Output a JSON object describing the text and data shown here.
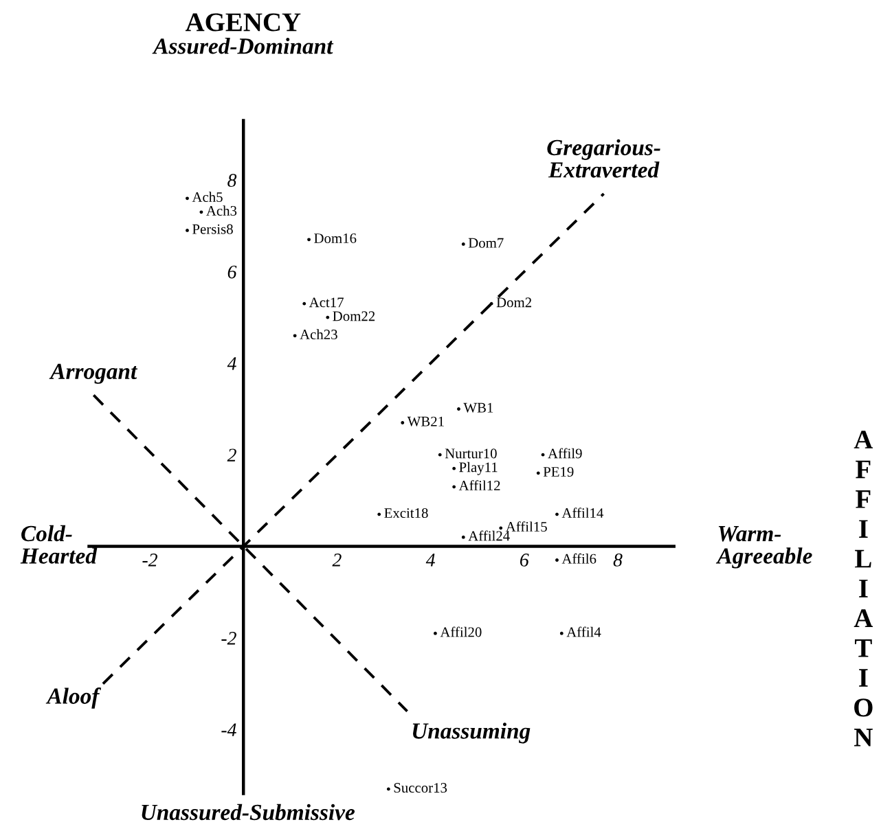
{
  "chart_data": {
    "type": "scatter",
    "ylabel": "AGENCY",
    "xlabel": "AFFILIATION",
    "xlim": [
      -3.3,
      9.2
    ],
    "ylim": [
      -5.4,
      9.3
    ],
    "xticks": [
      -2,
      2,
      4,
      6,
      8
    ],
    "yticks": [
      -4,
      -2,
      2,
      4,
      6,
      8
    ],
    "grid": false,
    "legend": false,
    "marker": "circle",
    "series": [
      {
        "type": "line",
        "line_style": "dashed",
        "marker": "none",
        "color": "#000000",
        "x": [
          -3.0,
          7.7
        ],
        "values": [
          -3.0,
          7.7
        ]
      },
      {
        "type": "line",
        "line_style": "dashed",
        "marker": "none",
        "color": "#000000",
        "x": [
          -3.2,
          3.5
        ],
        "values": [
          3.3,
          -3.6
        ]
      },
      {
        "name": "Ach5",
        "color": "#000000",
        "x": [
          -1.2
        ],
        "values": [
          7.6
        ]
      },
      {
        "name": "Ach3",
        "color": "#000000",
        "x": [
          -0.9
        ],
        "values": [
          7.3
        ]
      },
      {
        "name": "Persis8",
        "color": "#000000",
        "x": [
          -1.2
        ],
        "values": [
          6.9
        ]
      },
      {
        "name": "Dom16",
        "color": "#000000",
        "x": [
          1.4
        ],
        "values": [
          6.7
        ]
      },
      {
        "name": "Act17",
        "color": "#000000",
        "x": [
          1.3
        ],
        "values": [
          5.3
        ]
      },
      {
        "name": "Dom22",
        "color": "#000000",
        "x": [
          1.8
        ],
        "values": [
          5.0
        ]
      },
      {
        "name": "Ach23",
        "color": "#000000",
        "x": [
          1.1
        ],
        "values": [
          4.6
        ]
      },
      {
        "name": "WB21",
        "color": "#000000",
        "x": [
          3.4
        ],
        "values": [
          2.7
        ]
      },
      {
        "name": "Excit18",
        "color": "#000000",
        "x": [
          2.9
        ],
        "values": [
          0.7
        ]
      },
      {
        "name": "Dom7",
        "color": "#000000",
        "x": [
          4.7
        ],
        "values": [
          6.6
        ]
      },
      {
        "name": "Dom2",
        "color": "#000000",
        "x": [
          5.3
        ],
        "values": [
          5.3
        ]
      },
      {
        "name": "WB1",
        "color": "#000000",
        "x": [
          4.6
        ],
        "values": [
          3.0
        ]
      },
      {
        "name": "Nurtur10",
        "color": "#000000",
        "x": [
          4.2
        ],
        "values": [
          2.0
        ]
      },
      {
        "name": "Play11",
        "color": "#000000",
        "x": [
          4.5
        ],
        "values": [
          1.7
        ]
      },
      {
        "name": "Affil12",
        "color": "#000000",
        "x": [
          4.5
        ],
        "values": [
          1.3
        ]
      },
      {
        "name": "Affil9",
        "color": "#000000",
        "x": [
          6.4
        ],
        "values": [
          2.0
        ]
      },
      {
        "name": "PE19",
        "color": "#000000",
        "x": [
          6.3
        ],
        "values": [
          1.6
        ]
      },
      {
        "name": "Affil14",
        "color": "#000000",
        "x": [
          6.7
        ],
        "values": [
          0.7
        ]
      },
      {
        "name": "Affil15",
        "color": "#000000",
        "x": [
          5.5
        ],
        "values": [
          0.4
        ]
      },
      {
        "name": "Affil24",
        "color": "#000000",
        "x": [
          4.7
        ],
        "values": [
          0.2
        ]
      },
      {
        "name": "Affil6",
        "color": "#000000",
        "x": [
          6.7
        ],
        "values": [
          -0.3
        ]
      },
      {
        "name": "Affil20",
        "color": "#000000",
        "x": [
          4.1
        ],
        "values": [
          -1.9
        ]
      },
      {
        "name": "Affil4",
        "color": "#000000",
        "x": [
          6.8
        ],
        "values": [
          -1.9
        ]
      },
      {
        "name": "Succor13",
        "color": "#000000",
        "x": [
          3.1
        ],
        "values": [
          -5.3
        ]
      }
    ],
    "annotations": [
      "Assured-Dominant",
      {
        "text": "Gregarious-\nExtraverted",
        "x": 7.7,
        "y": 7.7
      },
      {
        "text": "Arrogant",
        "x": -3.2,
        "y": 3.3
      },
      "Cold-\nHearted",
      "Warm-\nAgreeable",
      {
        "text": "Aloof",
        "x": -3.0,
        "y": -3.0
      },
      {
        "text": "Unassuming",
        "x": 3.5,
        "y": -3.6
      },
      "Unassured-Submissive"
    ]
  }
}
